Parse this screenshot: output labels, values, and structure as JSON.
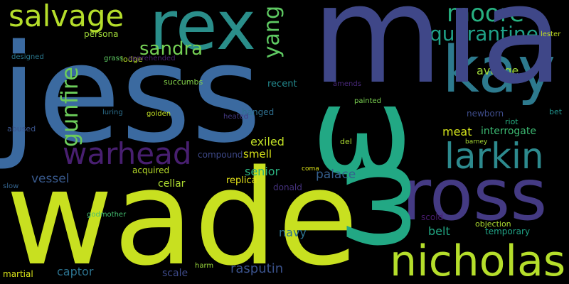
{
  "words": [
    {
      "text": "jess",
      "color": "#3b6aa0"
    },
    {
      "text": "wade",
      "color": "#c8e020"
    },
    {
      "text": "rex",
      "color": "#2a8e8a"
    },
    {
      "text": "salvage",
      "color": "#b5de2b"
    },
    {
      "text": "moore",
      "color": "#27b080"
    },
    {
      "text": "quarantine",
      "color": "#1fa188"
    },
    {
      "text": "kay",
      "color": "#2d7a8e"
    },
    {
      "text": "ross",
      "color": "#443a83"
    },
    {
      "text": "larkin",
      "color": "#2d8a8e"
    },
    {
      "text": "nicholas",
      "color": "#b5de2b"
    },
    {
      "text": "gunfire",
      "color": "#6ccd5a"
    },
    {
      "text": "warhead",
      "color": "#481f70"
    },
    {
      "text": "yang",
      "color": "#5ec962"
    },
    {
      "text": "sandra",
      "color": "#75d054"
    },
    {
      "text": "avenge",
      "color": "#9fda3a"
    },
    {
      "text": "meat",
      "color": "#d2e21b"
    },
    {
      "text": "interrogate",
      "color": "#3dbc74"
    },
    {
      "text": "exiled",
      "color": "#c0df25"
    },
    {
      "text": "smell",
      "color": "#d8e219"
    },
    {
      "text": "senior",
      "color": "#2ab07f"
    },
    {
      "text": "vessel",
      "color": "#38598c"
    },
    {
      "text": "palace",
      "color": "#355f8d"
    },
    {
      "text": "cellar",
      "color": "#addc30"
    },
    {
      "text": "acquired",
      "color": "#b8de29"
    },
    {
      "text": "replica",
      "color": "#e5e419"
    },
    {
      "text": "donald",
      "color": "#46327e"
    },
    {
      "text": "navy",
      "color": "#2c728e"
    },
    {
      "text": "belt",
      "color": "#22a884"
    },
    {
      "text": "temporary",
      "color": "#20a386"
    },
    {
      "text": "rasputin",
      "color": "#3b528b"
    },
    {
      "text": "captor",
      "color": "#2c728e"
    },
    {
      "text": "scale",
      "color": "#3e4a89"
    },
    {
      "text": "martial",
      "color": "#d8e219"
    },
    {
      "text": "persona",
      "color": "#a0da39"
    },
    {
      "text": "compound",
      "color": "#3e4989"
    },
    {
      "text": "recent",
      "color": "#23898e"
    },
    {
      "text": "hanged",
      "color": "#2e6f8e"
    },
    {
      "text": "riot",
      "color": "#27ad81"
    },
    {
      "text": "bet",
      "color": "#20928c"
    },
    {
      "text": "newborn",
      "color": "#3e4c8a"
    },
    {
      "text": "amends",
      "color": "#482878"
    },
    {
      "text": "painted",
      "color": "#7ad151"
    },
    {
      "text": "lodge",
      "color": "#b8de29"
    },
    {
      "text": "grass",
      "color": "#5ec962"
    },
    {
      "text": "apprehended",
      "color": "#481f70"
    },
    {
      "text": "succumbs",
      "color": "#84d44b"
    },
    {
      "text": "golden",
      "color": "#c0df25"
    },
    {
      "text": "luring",
      "color": "#2d708e"
    },
    {
      "text": "heated",
      "color": "#443983"
    },
    {
      "text": "abused",
      "color": "#3a548c"
    },
    {
      "text": "designed",
      "color": "#2a788e"
    },
    {
      "text": "slow",
      "color": "#33638d"
    },
    {
      "text": "godmother",
      "color": "#44bf70"
    },
    {
      "text": "harm",
      "color": "#9bd93c"
    },
    {
      "text": "del",
      "color": "#addc30"
    },
    {
      "text": "coma",
      "color": "#dde318"
    },
    {
      "text": "barney",
      "color": "#a8db34"
    },
    {
      "text": "lester",
      "color": "#c2df23"
    },
    {
      "text": "scold",
      "color": "#481b6d"
    },
    {
      "text": "objection",
      "color": "#addc30"
    },
    {
      "text": "mia",
      "color": "#3f4788"
    },
    {
      "text": "ω",
      "color": "#22a884"
    },
    {
      "text": "ω",
      "color": "#22a884"
    },
    {
      "text": "ω",
      "color": "#22a884"
    }
  ]
}
